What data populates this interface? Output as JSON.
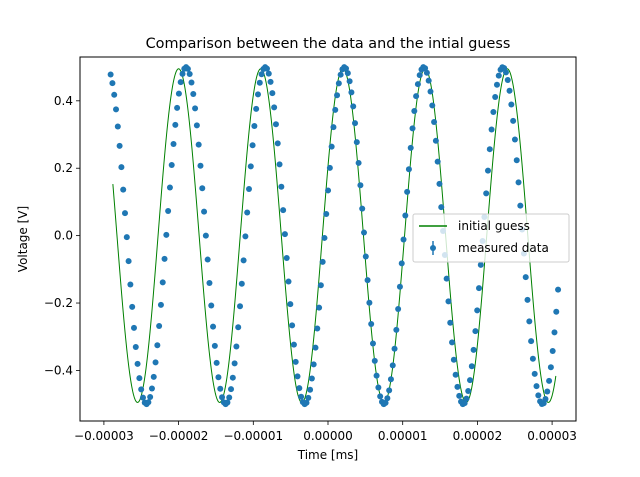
{
  "chart_data": {
    "type": "scatter",
    "title": "Comparison between the data and the intial guess",
    "xlabel": "Time [ms]",
    "ylabel": "Voltage [V]",
    "xlim": [
      -3.32e-05,
      3.32e-05
    ],
    "ylim": [
      -0.55,
      0.53
    ],
    "x_ticks": [
      -3e-05,
      -2e-05,
      -1e-05,
      0,
      1e-05,
      2e-05,
      3e-05
    ],
    "x_tick_labels": [
      "−0.00003",
      "−0.00002",
      "−0.00001",
      "0.00000",
      "0.00001",
      "0.00002",
      "0.00003"
    ],
    "y_ticks": [
      -0.4,
      -0.2,
      0.0,
      0.2,
      0.4
    ],
    "y_tick_labels": [
      "−0.4",
      "−0.2",
      "0.0",
      "0.2",
      "0.4"
    ],
    "grid": false,
    "legend_position": "center right",
    "series": [
      {
        "name": "initial guess",
        "kind": "line",
        "color": "#008000",
        "model": "sine",
        "amplitude": 0.495,
        "period": 1.1e-05,
        "phase_x0": 2e-06,
        "x_start": -2.88e-05,
        "x_end": 3.05e-05
      },
      {
        "name": "measured data",
        "kind": "errorbar-points",
        "color": "#1f77b4",
        "model": "sine",
        "amplitude": 0.5,
        "period": 1.06e-05,
        "phase_x0": 2.2e-06,
        "x_start": -2.91e-05,
        "x_end": 3.08e-05,
        "n_points": 250
      }
    ]
  }
}
